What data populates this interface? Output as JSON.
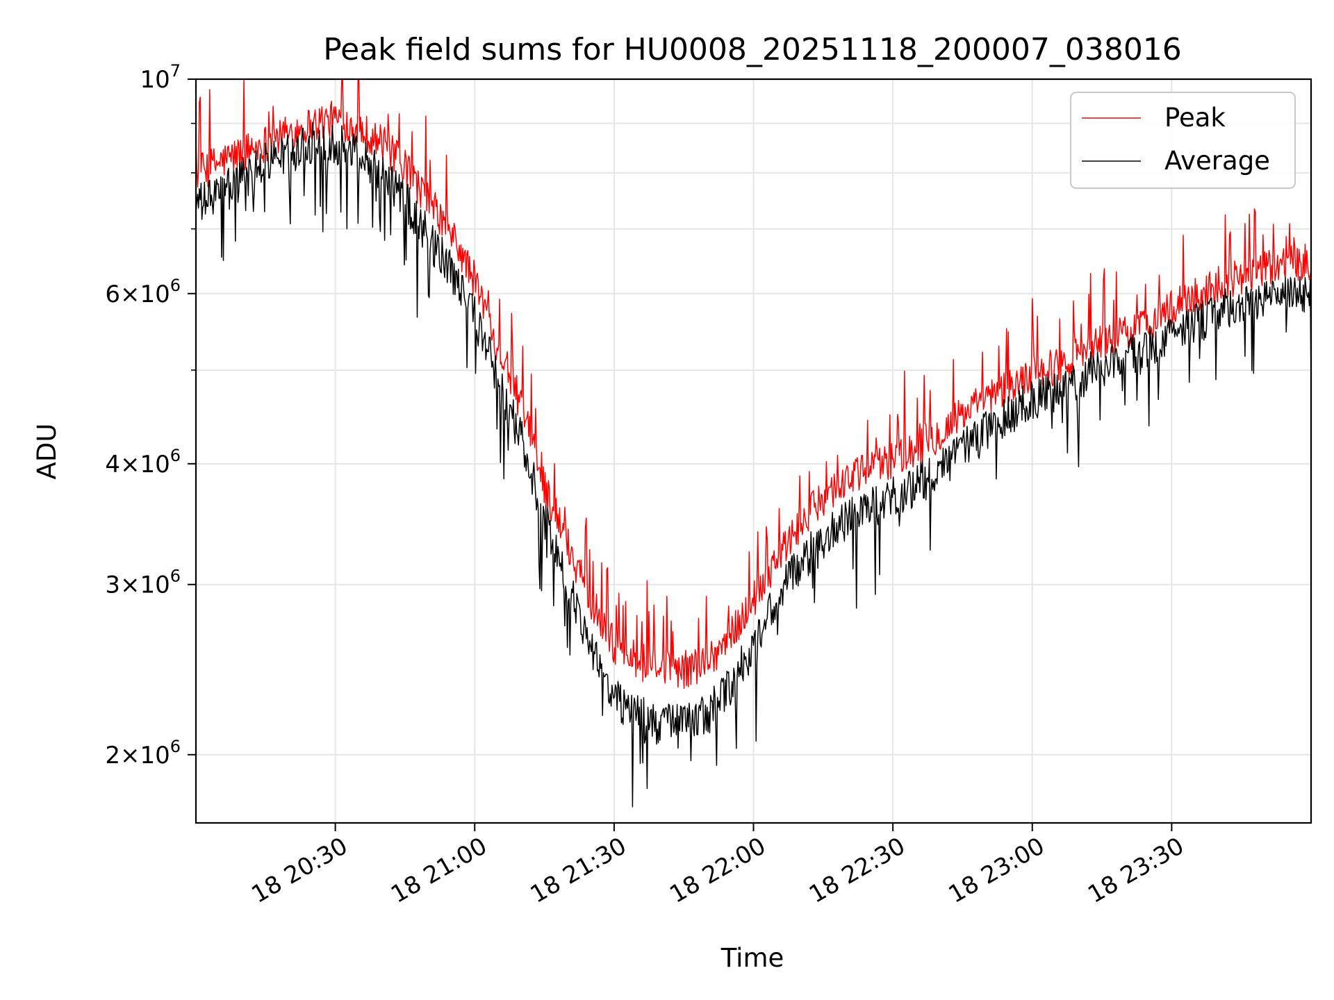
{
  "chart_data": {
    "type": "line",
    "title": "Peak field sums for HU0008_20251118_200007_038016",
    "xlabel": "Time",
    "ylabel": "ADU",
    "yscale": "log",
    "ylim": [
      1700000,
      10000000
    ],
    "xlim_minutes_from_2000": [
      12,
      252
    ],
    "grid": true,
    "legend_position": "upper right",
    "x_ticks": [
      {
        "label": "18 20:30",
        "minute": 42
      },
      {
        "label": "18 21:00",
        "minute": 72
      },
      {
        "label": "18 21:30",
        "minute": 102
      },
      {
        "label": "18 22:00",
        "minute": 132
      },
      {
        "label": "18 22:30",
        "minute": 162
      },
      {
        "label": "18 23:00",
        "minute": 192
      },
      {
        "label": "18 23:30",
        "minute": 222
      }
    ],
    "y_ticks": [
      {
        "value": 2000000,
        "mantissa": "2",
        "exp": "6"
      },
      {
        "value": 3000000,
        "mantissa": "3",
        "exp": "6"
      },
      {
        "value": 4000000,
        "mantissa": "4",
        "exp": "6"
      },
      {
        "value": 6000000,
        "mantissa": "6",
        "exp": "6"
      },
      {
        "value": 10000000,
        "mantissa": "",
        "exp": "7"
      }
    ],
    "y_minor_ticks": [
      5000000,
      7000000,
      8000000,
      9000000
    ],
    "series": [
      {
        "name": "Peak",
        "color": "#ff0000",
        "x_minutes": [
          12,
          17,
          22,
          27,
          32,
          37,
          42,
          47,
          52,
          57,
          62,
          67,
          72,
          77,
          82,
          87,
          92,
          97,
          102,
          107,
          112,
          117,
          122,
          127,
          132,
          137,
          142,
          147,
          152,
          157,
          162,
          167,
          172,
          177,
          182,
          187,
          192,
          197,
          202,
          207,
          212,
          217,
          222,
          227,
          232,
          237,
          242,
          247,
          252
        ],
        "values": [
          8000000,
          8200000,
          8400000,
          8600000,
          8800000,
          9000000,
          9100000,
          8900000,
          8600000,
          8100000,
          7500000,
          6900000,
          6200000,
          5300000,
          4600000,
          3800000,
          3300000,
          2900000,
          2600000,
          2500000,
          2450000,
          2450000,
          2500000,
          2650000,
          2900000,
          3200000,
          3450000,
          3700000,
          3850000,
          3950000,
          4050000,
          4150000,
          4300000,
          4500000,
          4650000,
          4800000,
          4950000,
          5050000,
          5200000,
          5350000,
          5450000,
          5600000,
          5800000,
          5950000,
          6150000,
          6250000,
          6350000,
          6450000,
          6500000
        ],
        "noise": 0.045,
        "spike_amplitude": 0.12
      },
      {
        "name": "Average",
        "color": "#000000",
        "x_minutes": [
          12,
          17,
          22,
          27,
          32,
          37,
          42,
          47,
          52,
          57,
          62,
          67,
          72,
          77,
          82,
          87,
          92,
          97,
          102,
          107,
          112,
          117,
          122,
          127,
          132,
          137,
          142,
          147,
          152,
          157,
          162,
          167,
          172,
          177,
          182,
          187,
          192,
          197,
          202,
          207,
          212,
          217,
          222,
          227,
          232,
          237,
          242,
          247,
          252
        ],
        "values": [
          7400000,
          7600000,
          7900000,
          8200000,
          8400000,
          8600000,
          8600000,
          8400000,
          8000000,
          7500000,
          6900000,
          6300000,
          5700000,
          4900000,
          4250000,
          3500000,
          3000000,
          2600000,
          2300000,
          2200000,
          2150000,
          2150000,
          2200000,
          2350000,
          2600000,
          2900000,
          3150000,
          3350000,
          3500000,
          3600000,
          3700000,
          3800000,
          3950000,
          4150000,
          4350000,
          4500000,
          4650000,
          4750000,
          4900000,
          5050000,
          5150000,
          5300000,
          5450000,
          5600000,
          5750000,
          5850000,
          5900000,
          5950000,
          6000000
        ],
        "noise": 0.05,
        "spike_amplitude": -0.12
      }
    ]
  }
}
